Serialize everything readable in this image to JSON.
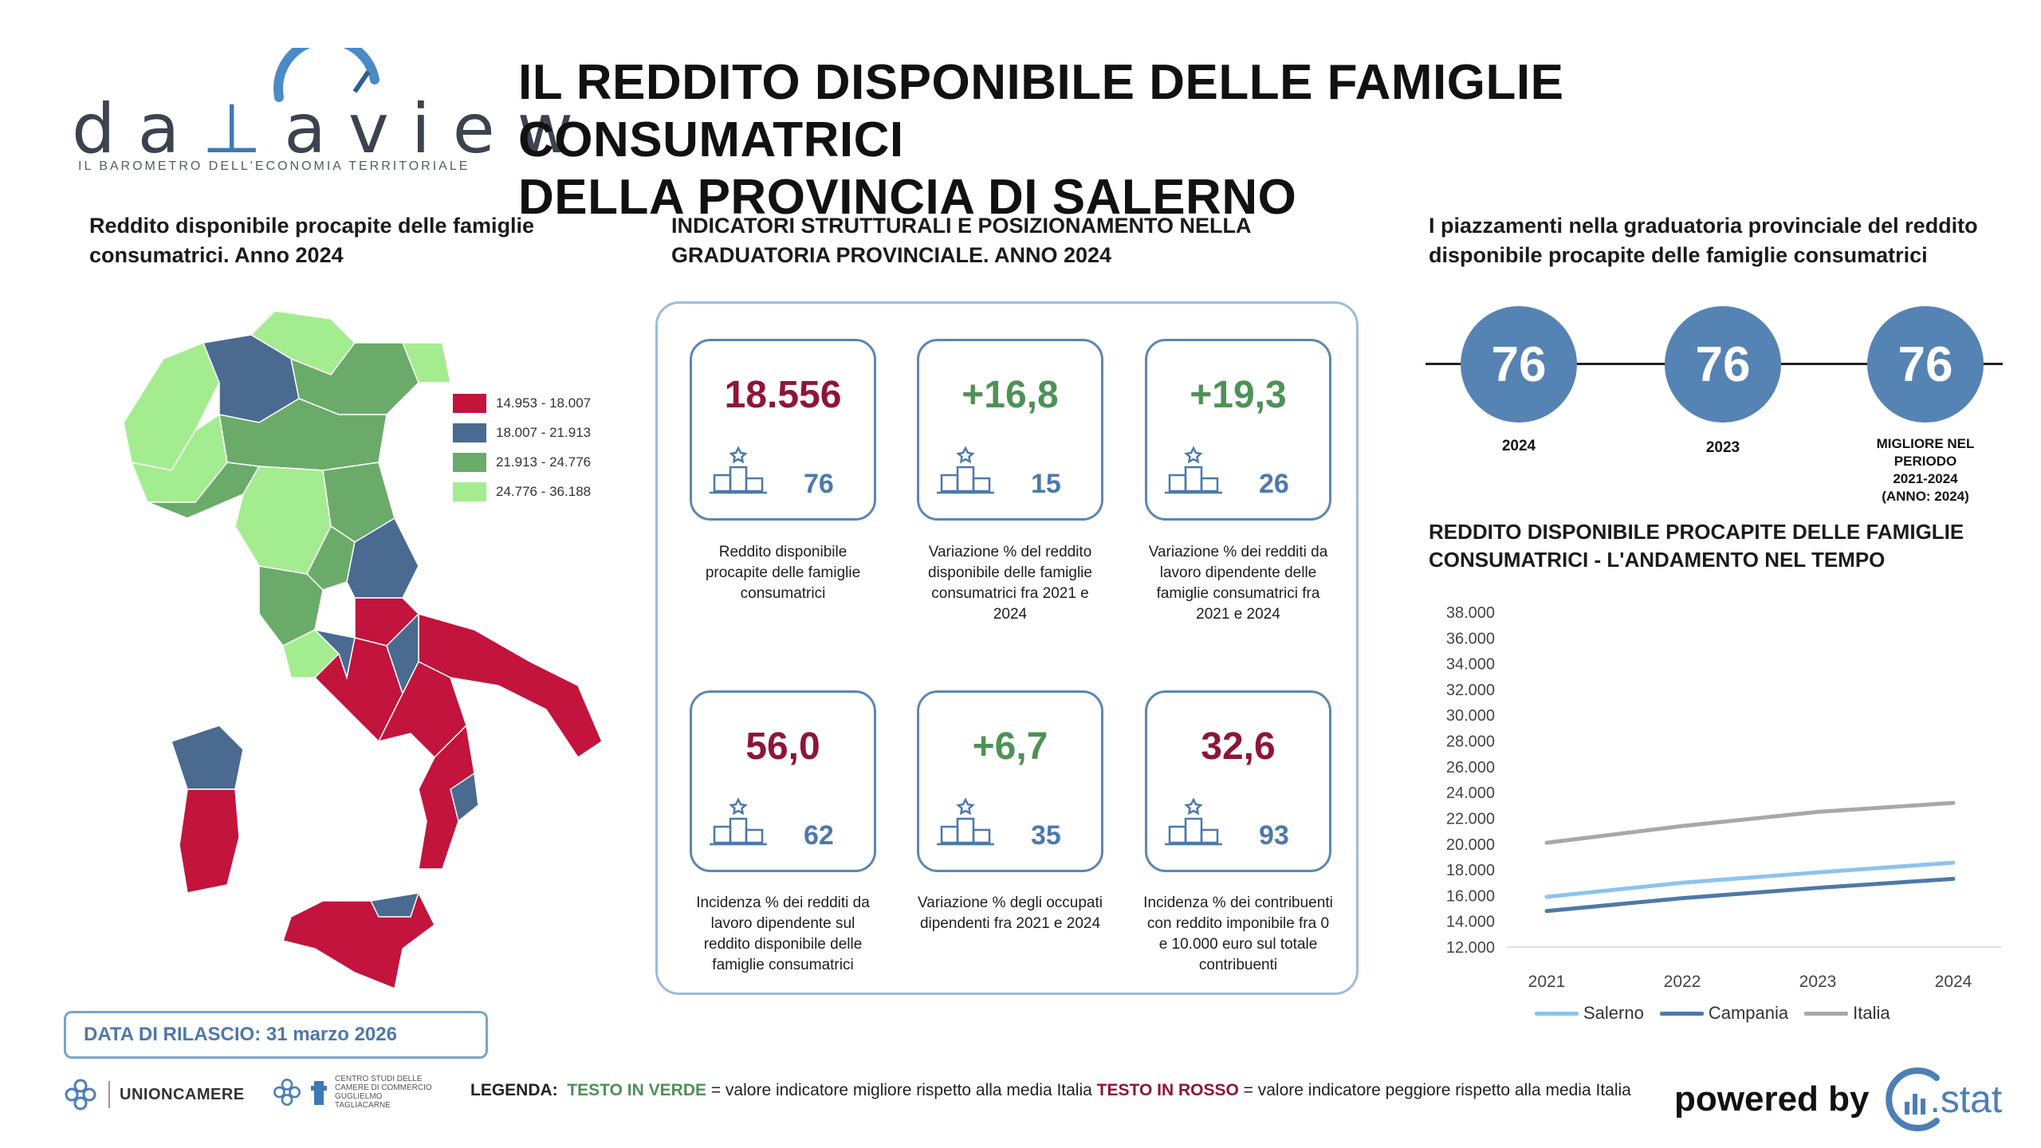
{
  "header": {
    "logo_text_left": "da",
    "logo_text_mid": "a",
    "logo_text_right": "view",
    "logo_tagline": "IL BAROMETRO DELL'ECONOMIA TERRITORIALE",
    "title_line1": "IL REDDITO DISPONIBILE DELLE FAMIGLIE CONSUMATRICI",
    "title_line2": "DELLA PROVINCIA DI SALERNO"
  },
  "map_section": {
    "title_line1": "Reddito disponibile procapite delle famiglie",
    "title_line2": "consumatrici. Anno 2024",
    "legend": [
      {
        "label": "14.953 - 18.007",
        "color": "#c2143c"
      },
      {
        "label": "18.007 - 21.913",
        "color": "#4a6a90"
      },
      {
        "label": "21.913 - 24.776",
        "color": "#6aab6a"
      },
      {
        "label": "24.776 - 36.188",
        "color": "#a4ec90"
      }
    ]
  },
  "indicators": {
    "title_line1": "INDICATORI STRUTTURALI E POSIZIONAMENTO NELLA",
    "title_line2": "GRADUATORIA PROVINCIALE. ANNO 2024",
    "cards": [
      {
        "value": "18.556",
        "rank": "76",
        "status": "red",
        "desc": "Reddito disponibile procapite delle famiglie consumatrici"
      },
      {
        "value": "+16,8",
        "rank": "15",
        "status": "green",
        "desc": "Variazione % del reddito disponibile delle famiglie consumatrici fra 2021 e 2024"
      },
      {
        "value": "+19,3",
        "rank": "26",
        "status": "green",
        "desc": "Variazione % dei redditi da lavoro dipendente delle famiglie consumatrici fra 2021 e 2024"
      },
      {
        "value": "56,0",
        "rank": "62",
        "status": "red",
        "desc": "Incidenza % dei redditi da lavoro dipendente sul reddito disponibile delle famiglie consumatrici"
      },
      {
        "value": "+6,7",
        "rank": "35",
        "status": "green",
        "desc": "Variazione % degli occupati dipendenti fra 2021 e 2024"
      },
      {
        "value": "32,6",
        "rank": "93",
        "status": "red",
        "desc": "Incidenza % dei contribuenti con reddito imponibile fra 0 e 10.000 euro sul totale contribuenti"
      }
    ]
  },
  "rankings": {
    "title_line1": "I piazzamenti nella graduatoria provinciale del reddito",
    "title_line2": "disponibile procapite delle famiglie consumatrici",
    "items": [
      {
        "value": "76",
        "label": "2024"
      },
      {
        "value": "76",
        "label": "2023"
      },
      {
        "value": "76",
        "label_lines": [
          "MIGLIORE NEL",
          "PERIODO",
          "2021-2024",
          "(ANNO: 2024)"
        ]
      }
    ]
  },
  "trend": {
    "title_line1": "REDDITO DISPONIBILE PROCAPITE DELLE FAMIGLIE",
    "title_line2": "CONSUMATRICI - L'ANDAMENTO NEL TEMPO"
  },
  "chart_data": {
    "type": "line",
    "title": "REDDITO DISPONIBILE PROCAPITE DELLE FAMIGLIE CONSUMATRICI - L'ANDAMENTO NEL TEMPO",
    "categories": [
      "2021",
      "2022",
      "2023",
      "2024"
    ],
    "yticks": [
      "12.000",
      "14.000",
      "16.000",
      "18.000",
      "20.000",
      "22.000",
      "24.000",
      "26.000",
      "28.000",
      "30.000",
      "32.000",
      "34.000",
      "36.000",
      "38.000"
    ],
    "ylim": [
      12000,
      38000
    ],
    "series": [
      {
        "name": "Salerno",
        "color": "#8cc4ec",
        "values": [
          15900,
          17000,
          17800,
          18556
        ]
      },
      {
        "name": "Campania",
        "color": "#4f78a8",
        "values": [
          14800,
          15800,
          16600,
          17300
        ]
      },
      {
        "name": "Italia",
        "color": "#a8a8a8",
        "values": [
          20100,
          21400,
          22500,
          23200
        ]
      }
    ],
    "grid": false,
    "legend_position": "bottom"
  },
  "footer": {
    "release": "DATA DI RILASCIO: 31 marzo 2026",
    "unioncamere": "UNIONCAMERE",
    "centro_studi": "CENTRO STUDI DELLE CAMERE DI COMMERCIO GUGLIELMO TAGLIACARNE",
    "legenda_label": "LEGENDA:",
    "legenda_green": "TESTO IN VERDE",
    "legenda_green_desc": " = valore indicatore migliore rispetto alla media Italia ",
    "legenda_red": "TESTO IN ROSSO",
    "legenda_red_desc": " = valore indicatore peggiore rispetto alla media Italia",
    "powered": "powered by",
    "brand": ".stat"
  }
}
